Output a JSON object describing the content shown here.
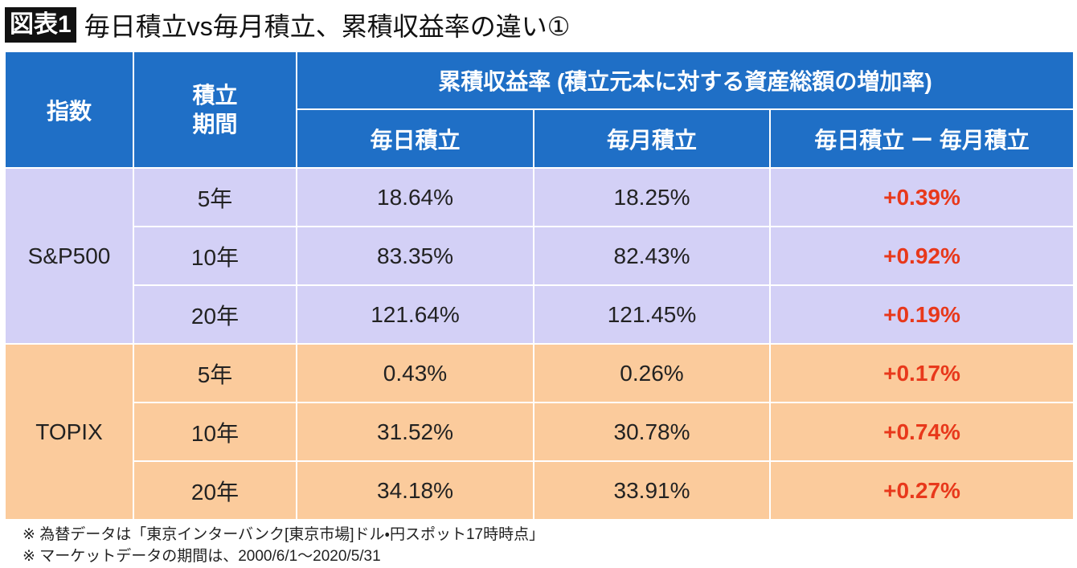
{
  "header": {
    "badge": "図表1",
    "title": "毎日積立vs毎月積立、累積収益率の違い①"
  },
  "table": {
    "columns": {
      "index": "指数",
      "period": [
        "積立",
        "期間"
      ],
      "group": "累積収益率 (積立元本に対する資産総額の増加率)",
      "sub": [
        "毎日積立",
        "毎月積立",
        "毎日積立 ー 毎月積立"
      ]
    },
    "groups": [
      {
        "name": "S&P500",
        "rows": [
          [
            "5年",
            "18.64%",
            "18.25%",
            "+0.39%"
          ],
          [
            "10年",
            "83.35%",
            "82.43%",
            "+0.92%"
          ],
          [
            "20年",
            "121.64%",
            "121.45%",
            "+0.19%"
          ]
        ]
      },
      {
        "name": "TOPIX",
        "rows": [
          [
            "5年",
            "0.43%",
            "0.26%",
            "+0.17%"
          ],
          [
            "10年",
            "31.52%",
            "30.78%",
            "+0.74%"
          ],
          [
            "20年",
            "34.18%",
            "33.91%",
            "+0.27%"
          ]
        ]
      }
    ]
  },
  "notes": [
    "※ 為替データは「東京インターバンク[東京市場]ドル・円スポット17時時点」",
    "※ マーケットデータの期間は、2000/6/1～2020/5/31"
  ]
}
